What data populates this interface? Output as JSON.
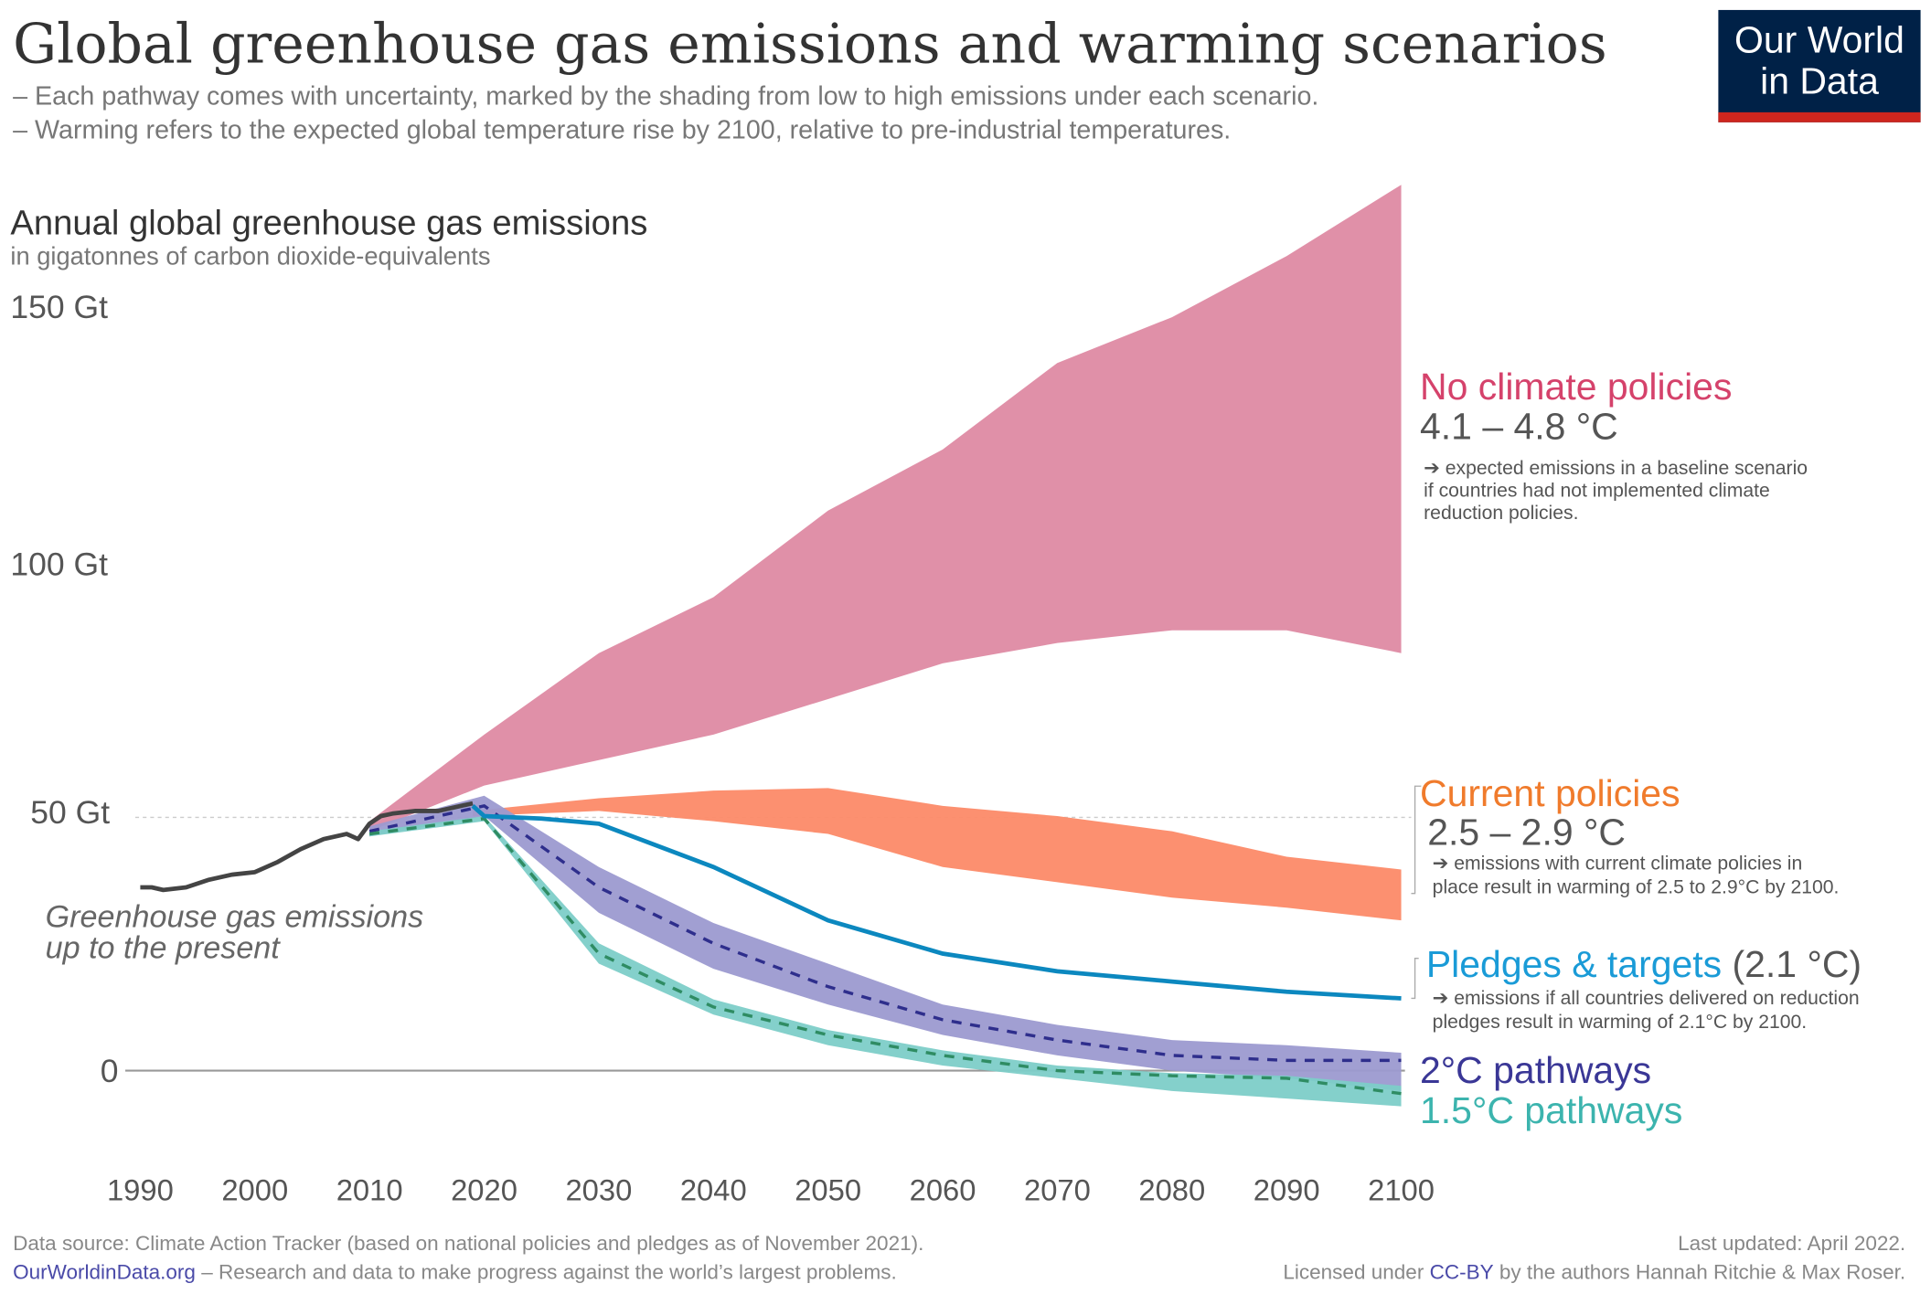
{
  "title": "Global greenhouse gas emissions and warming scenarios",
  "subtitle_lines": [
    "– Each pathway comes with uncertainty, marked by the shading from low to high emissions under each scenario.",
    "– Warming refers to the expected global temperature rise by 2100, relative to pre-industrial temperatures."
  ],
  "logo": {
    "line1": "Our World",
    "line2": "in Data",
    "bg": "#002147",
    "bar": "#ce261e"
  },
  "footer": {
    "source": "Data source: Climate Action Tracker (based on national policies and pledges as of November 2021).",
    "site": "OurWorldinData.org",
    "tagline": " – Research and data to make progress against the world’s largest problems.",
    "updated": "Last updated: April 2022.",
    "license_prefix": "Licensed under ",
    "license_link": "CC-BY",
    "license_suffix": " by the authors Hannah Ritchie & Max Roser."
  },
  "chart_data": {
    "type": "area",
    "title": "Annual global greenhouse gas emissions",
    "subtitle": "in gigatonnes of carbon dioxide-equivalents",
    "xlim": [
      1990,
      2100
    ],
    "ylim": [
      -10,
      175
    ],
    "x_ticks": [
      "1990",
      "2000",
      "2010",
      "2020",
      "2030",
      "2040",
      "2050",
      "2060",
      "2070",
      "2080",
      "2090",
      "2100"
    ],
    "y_ticks": [
      {
        "value": 150,
        "label": "150 Gt"
      },
      {
        "value": 100,
        "label": "100 Gt"
      },
      {
        "value": 50,
        "label": "50 Gt"
      },
      {
        "value": 0,
        "label": "0"
      }
    ],
    "grid": "dotted line at 50 Gt, solid baseline at 0",
    "historical": {
      "label_lines": [
        "Greenhouse gas emissions",
        "up to the present"
      ],
      "color": "#444444",
      "x": [
        1990,
        1991,
        1992,
        1994,
        1996,
        1998,
        2000,
        2002,
        2004,
        2006,
        2008,
        2009,
        2010,
        2011,
        2012,
        2014,
        2016,
        2018,
        2019
      ],
      "y": [
        36,
        36,
        35.5,
        36,
        37.5,
        38.5,
        39,
        41,
        43.5,
        45.5,
        46.5,
        45.5,
        48.5,
        50,
        50.5,
        51,
        51,
        52,
        52.5
      ]
    },
    "scenarios": [
      {
        "name": "No climate policies",
        "range": "4.1 – 4.8 °C",
        "note_lines": [
          "➔ expected emissions in a baseline scenario",
          "if countries had not implemented climate",
          "reduction policies."
        ],
        "band_color": "#de8aa3",
        "label_color": "#d5426b",
        "x": [
          2010,
          2020,
          2030,
          2040,
          2050,
          2060,
          2070,
          2080,
          2090,
          2100
        ],
        "high": [
          49,
          66,
          82,
          93,
          110,
          122,
          139,
          148,
          160,
          174
        ],
        "low": [
          47,
          56,
          61,
          66,
          73,
          80,
          84,
          86.5,
          86.5,
          82
        ]
      },
      {
        "name": "Current policies",
        "range": "2.5 – 2.9 °C",
        "note_lines": [
          "➔ emissions with current climate policies in",
          "place result in warming of 2.5 to 2.9°C by 2100."
        ],
        "band_color": "#fc8a68",
        "label_color": "#f07b2c",
        "x": [
          2019,
          2030,
          2040,
          2050,
          2060,
          2070,
          2080,
          2090,
          2100
        ],
        "high": [
          51,
          53.5,
          55,
          55.5,
          52,
          50,
          47,
          42,
          39.5
        ],
        "low": [
          50,
          51,
          49,
          46.5,
          40,
          37,
          34,
          32,
          29.5
        ]
      },
      {
        "name": "Pledges & targets",
        "range": " (2.1 °C)",
        "note_lines": [
          "➔ emissions if all countries delivered on reduction",
          "pledges result in warming of 2.1°C by 2100."
        ],
        "line_color": "#0c88bf",
        "label_color": "#1a9bd7",
        "x": [
          2019,
          2020,
          2025,
          2030,
          2040,
          2050,
          2060,
          2070,
          2080,
          2090,
          2100
        ],
        "y": [
          52,
          50,
          49.5,
          48.5,
          40,
          29.5,
          23,
          19.5,
          17.5,
          15.5,
          14.2
        ]
      },
      {
        "name": "2°C pathways",
        "band_color": "#9c9ad0",
        "line_color": "#2e2e8c",
        "label_color": "#3a3796",
        "x": [
          2010,
          2020,
          2030,
          2040,
          2050,
          2060,
          2070,
          2080,
          2090,
          2100
        ],
        "high": [
          48,
          54,
          40,
          29,
          21,
          13,
          9,
          6,
          5,
          3.5
        ],
        "low": [
          46,
          50,
          31,
          20,
          13,
          7,
          3,
          0,
          -1.5,
          -4
        ],
        "median": [
          47,
          52,
          36,
          25,
          16.5,
          10,
          6,
          3,
          2,
          2
        ]
      },
      {
        "name": "1.5°C pathways",
        "band_color": "#7dcdc8",
        "line_color": "#2f8c63",
        "label_color": "#3cb4ae",
        "x": [
          2010,
          2020,
          2030,
          2040,
          2050,
          2060,
          2070,
          2080,
          2090,
          2100
        ],
        "high": [
          47,
          50,
          25,
          14,
          8,
          4,
          1,
          -0.5,
          -1,
          -3
        ],
        "low": [
          46,
          49,
          21,
          11,
          5,
          1,
          -1.5,
          -4,
          -5.5,
          -7
        ],
        "median": [
          46.5,
          49.5,
          23,
          12.5,
          7,
          3,
          0,
          -1,
          -1.5,
          -4.5
        ]
      }
    ]
  }
}
